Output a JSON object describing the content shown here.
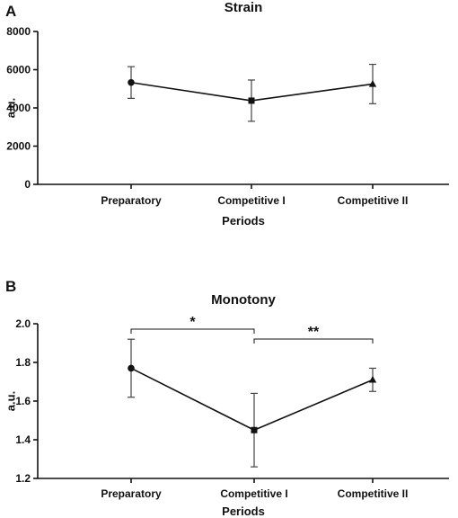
{
  "chart_data": [
    {
      "panel": "A",
      "type": "line",
      "title": "Strain",
      "xlabel": "Periods",
      "ylabel": "a.u.",
      "categories": [
        "Preparatory",
        "Competitive I",
        "Competitive II"
      ],
      "series": [
        {
          "values": [
            5330,
            4380,
            5250
          ],
          "errors": [
            830,
            1080,
            1030
          ],
          "markers": [
            "circle",
            "square",
            "triangle"
          ]
        }
      ],
      "ylim": [
        0,
        8000
      ],
      "yticks": [
        "0",
        "2000",
        "4000",
        "6000",
        "8000"
      ],
      "grid": false,
      "annotations": []
    },
    {
      "panel": "B",
      "type": "line",
      "title": "Monotony",
      "xlabel": "Periods",
      "ylabel": "a.u.",
      "categories": [
        "Preparatory",
        "Competitive I",
        "Competitive II"
      ],
      "series": [
        {
          "values": [
            1.77,
            1.45,
            1.71
          ],
          "errors": [
            0.15,
            0.19,
            0.06
          ],
          "markers": [
            "circle",
            "square",
            "triangle"
          ]
        }
      ],
      "ylim": [
        1.2,
        2.0
      ],
      "yticks": [
        "1.2",
        "1.4",
        "1.6",
        "1.8",
        "2.0"
      ],
      "grid": false,
      "annotations": [
        {
          "from": 0,
          "to": 1,
          "label": "*"
        },
        {
          "from": 1,
          "to": 2,
          "label": "**"
        }
      ]
    }
  ]
}
